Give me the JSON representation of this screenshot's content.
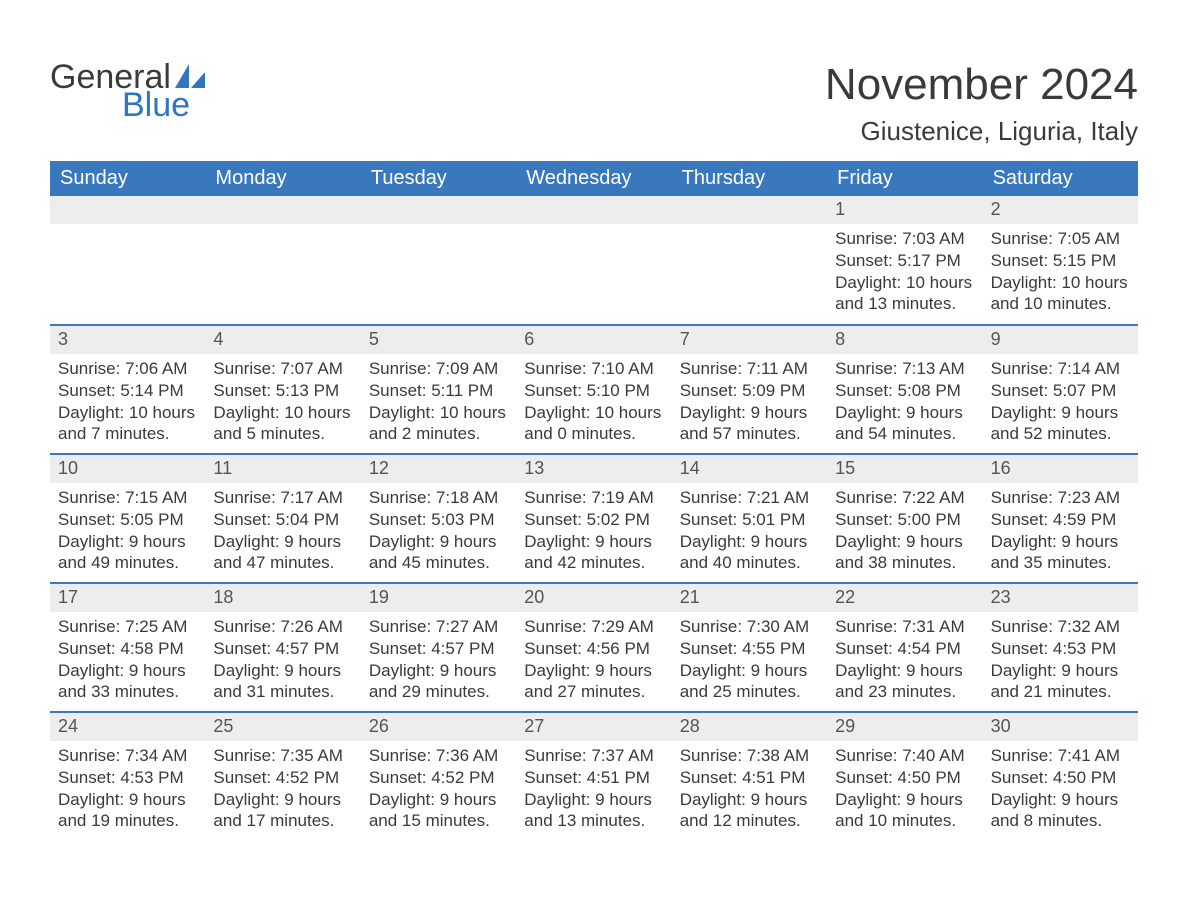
{
  "logo": {
    "word1": "General",
    "word2": "Blue"
  },
  "title": "November 2024",
  "location": "Giustenice, Liguria, Italy",
  "colors": {
    "header_bg": "#3a78bd",
    "header_text": "#ffffff",
    "date_strip_bg": "#ededed",
    "date_strip_border": "#3a78bd",
    "body_text": "#3a3a3a",
    "logo_blue": "#2f75c1"
  },
  "dayNames": [
    "Sunday",
    "Monday",
    "Tuesday",
    "Wednesday",
    "Thursday",
    "Friday",
    "Saturday"
  ],
  "weeks": [
    [
      null,
      null,
      null,
      null,
      null,
      {
        "d": "1",
        "sr": "7:03 AM",
        "ss": "5:17 PM",
        "dl": "10 hours and 13 minutes."
      },
      {
        "d": "2",
        "sr": "7:05 AM",
        "ss": "5:15 PM",
        "dl": "10 hours and 10 minutes."
      }
    ],
    [
      {
        "d": "3",
        "sr": "7:06 AM",
        "ss": "5:14 PM",
        "dl": "10 hours and 7 minutes."
      },
      {
        "d": "4",
        "sr": "7:07 AM",
        "ss": "5:13 PM",
        "dl": "10 hours and 5 minutes."
      },
      {
        "d": "5",
        "sr": "7:09 AM",
        "ss": "5:11 PM",
        "dl": "10 hours and 2 minutes."
      },
      {
        "d": "6",
        "sr": "7:10 AM",
        "ss": "5:10 PM",
        "dl": "10 hours and 0 minutes."
      },
      {
        "d": "7",
        "sr": "7:11 AM",
        "ss": "5:09 PM",
        "dl": "9 hours and 57 minutes."
      },
      {
        "d": "8",
        "sr": "7:13 AM",
        "ss": "5:08 PM",
        "dl": "9 hours and 54 minutes."
      },
      {
        "d": "9",
        "sr": "7:14 AM",
        "ss": "5:07 PM",
        "dl": "9 hours and 52 minutes."
      }
    ],
    [
      {
        "d": "10",
        "sr": "7:15 AM",
        "ss": "5:05 PM",
        "dl": "9 hours and 49 minutes."
      },
      {
        "d": "11",
        "sr": "7:17 AM",
        "ss": "5:04 PM",
        "dl": "9 hours and 47 minutes."
      },
      {
        "d": "12",
        "sr": "7:18 AM",
        "ss": "5:03 PM",
        "dl": "9 hours and 45 minutes."
      },
      {
        "d": "13",
        "sr": "7:19 AM",
        "ss": "5:02 PM",
        "dl": "9 hours and 42 minutes."
      },
      {
        "d": "14",
        "sr": "7:21 AM",
        "ss": "5:01 PM",
        "dl": "9 hours and 40 minutes."
      },
      {
        "d": "15",
        "sr": "7:22 AM",
        "ss": "5:00 PM",
        "dl": "9 hours and 38 minutes."
      },
      {
        "d": "16",
        "sr": "7:23 AM",
        "ss": "4:59 PM",
        "dl": "9 hours and 35 minutes."
      }
    ],
    [
      {
        "d": "17",
        "sr": "7:25 AM",
        "ss": "4:58 PM",
        "dl": "9 hours and 33 minutes."
      },
      {
        "d": "18",
        "sr": "7:26 AM",
        "ss": "4:57 PM",
        "dl": "9 hours and 31 minutes."
      },
      {
        "d": "19",
        "sr": "7:27 AM",
        "ss": "4:57 PM",
        "dl": "9 hours and 29 minutes."
      },
      {
        "d": "20",
        "sr": "7:29 AM",
        "ss": "4:56 PM",
        "dl": "9 hours and 27 minutes."
      },
      {
        "d": "21",
        "sr": "7:30 AM",
        "ss": "4:55 PM",
        "dl": "9 hours and 25 minutes."
      },
      {
        "d": "22",
        "sr": "7:31 AM",
        "ss": "4:54 PM",
        "dl": "9 hours and 23 minutes."
      },
      {
        "d": "23",
        "sr": "7:32 AM",
        "ss": "4:53 PM",
        "dl": "9 hours and 21 minutes."
      }
    ],
    [
      {
        "d": "24",
        "sr": "7:34 AM",
        "ss": "4:53 PM",
        "dl": "9 hours and 19 minutes."
      },
      {
        "d": "25",
        "sr": "7:35 AM",
        "ss": "4:52 PM",
        "dl": "9 hours and 17 minutes."
      },
      {
        "d": "26",
        "sr": "7:36 AM",
        "ss": "4:52 PM",
        "dl": "9 hours and 15 minutes."
      },
      {
        "d": "27",
        "sr": "7:37 AM",
        "ss": "4:51 PM",
        "dl": "9 hours and 13 minutes."
      },
      {
        "d": "28",
        "sr": "7:38 AM",
        "ss": "4:51 PM",
        "dl": "9 hours and 12 minutes."
      },
      {
        "d": "29",
        "sr": "7:40 AM",
        "ss": "4:50 PM",
        "dl": "9 hours and 10 minutes."
      },
      {
        "d": "30",
        "sr": "7:41 AM",
        "ss": "4:50 PM",
        "dl": "9 hours and 8 minutes."
      }
    ]
  ],
  "labels": {
    "sunrise": "Sunrise: ",
    "sunset": "Sunset: ",
    "daylight": "Daylight: "
  }
}
